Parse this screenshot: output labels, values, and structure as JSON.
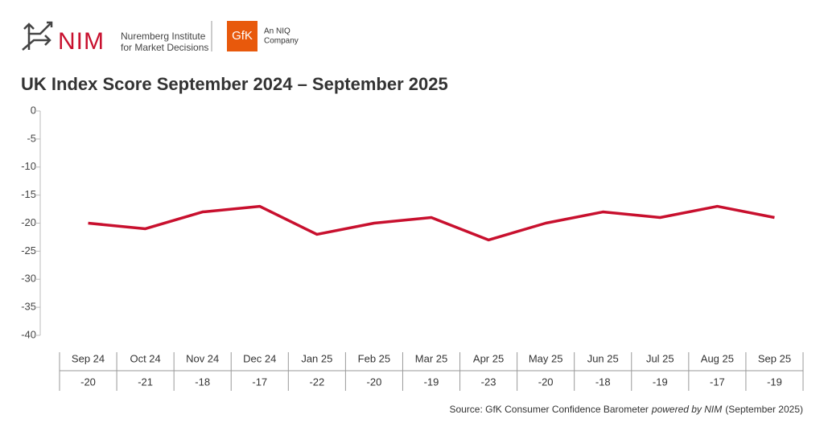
{
  "header": {
    "nim": "NIM",
    "nim_line1": "Nuremberg Institute",
    "nim_line2": "for Market Decisions",
    "gfk": "GfK",
    "gfk_line1": "An NIQ",
    "gfk_line2": "Company"
  },
  "chart_data": {
    "type": "line",
    "title": "UK Index Score September 2024 – September 2025",
    "categories": [
      "Sep 24",
      "Oct 24",
      "Nov 24",
      "Dec 24",
      "Jan 25",
      "Feb 25",
      "Mar 25",
      "Apr 25",
      "May 25",
      "Jun 25",
      "Jul 25",
      "Aug 25",
      "Sep 25"
    ],
    "values": [
      -20,
      -21,
      -18,
      -17,
      -22,
      -20,
      -19,
      -23,
      -20,
      -18,
      -19,
      -17,
      -19
    ],
    "color": "#c8102e",
    "ylim": [
      -40,
      0
    ],
    "yticks": [
      0,
      -5,
      -10,
      -15,
      -20,
      -25,
      -30,
      -35,
      -40
    ],
    "grid": false
  },
  "footer": {
    "source": "Source: GfK Consumer Confidence Barometer",
    "source_italic": "powered by NIM",
    "source_end": "(September 2025)"
  }
}
